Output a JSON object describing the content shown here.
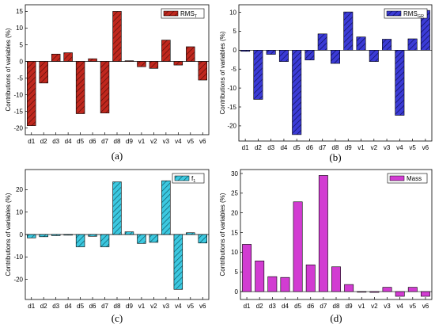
{
  "chart_data": [
    {
      "type": "bar",
      "panel_label": "(a)",
      "legend": "RMS",
      "legend_sub": "T",
      "ylabel": "Contributions of variables (%)",
      "categories": [
        "d1",
        "d2",
        "d3",
        "d4",
        "d5",
        "d6",
        "d7",
        "d8",
        "d9",
        "v1",
        "v2",
        "v3",
        "v4",
        "v5",
        "v6"
      ],
      "values": [
        -19.3,
        -6.5,
        2.2,
        2.6,
        -15.7,
        0.8,
        -15.5,
        15.0,
        0.2,
        -1.6,
        -2.1,
        6.4,
        -1.1,
        4.4,
        -5.6
      ],
      "ylim": [
        -22,
        17
      ],
      "yticks": [
        -20,
        -15,
        -10,
        -5,
        0,
        5,
        10,
        15
      ],
      "colors": {
        "fill": "#c0281e",
        "hatch": "#5a0c08"
      }
    },
    {
      "type": "bar",
      "panel_label": "(b)",
      "legend": "RMS",
      "legend_sub": "GR",
      "ylabel": "Contributions of variables (%)",
      "categories": [
        "d1",
        "d2",
        "d3",
        "d4",
        "d5",
        "d6",
        "d7",
        "d8",
        "d9",
        "v1",
        "v2",
        "v3",
        "v4",
        "v5",
        "v6"
      ],
      "values": [
        -0.3,
        -13.0,
        -1.1,
        -3.0,
        -22.3,
        -2.6,
        4.3,
        -3.5,
        10.1,
        3.5,
        -3.0,
        2.9,
        -17.2,
        3.0,
        10.5
      ],
      "ylim": [
        -24,
        12
      ],
      "yticks": [
        -20,
        -15,
        -10,
        -5,
        0,
        5,
        10
      ],
      "colors": {
        "fill": "#3b3bd6",
        "hatch": "#0c0c5a"
      }
    },
    {
      "type": "bar",
      "panel_label": "(c)",
      "legend": "f",
      "legend_sub": "1",
      "ylabel": "Contributions of variables (%)",
      "categories": [
        "d1",
        "d2",
        "d3",
        "d4",
        "d5",
        "d6",
        "d7",
        "d8",
        "d9",
        "v1",
        "v2",
        "v3",
        "v4",
        "v5",
        "v6"
      ],
      "values": [
        -1.5,
        -1.0,
        -0.5,
        -0.3,
        -5.5,
        -0.8,
        -5.5,
        23.5,
        1.2,
        -4.0,
        -3.5,
        24.0,
        -24.5,
        0.8,
        -3.8
      ],
      "ylim": [
        -29,
        29
      ],
      "yticks": [
        -20,
        -10,
        0,
        10,
        20
      ],
      "colors": {
        "fill": "#3cc8e0",
        "hatch": "#0c5a66"
      }
    },
    {
      "type": "bar",
      "panel_label": "(d)",
      "legend": "Mass",
      "legend_sub": "",
      "ylabel": "Contributions of variables (%)",
      "categories": [
        "d1",
        "d2",
        "d3",
        "d4",
        "d5",
        "d6",
        "d7",
        "d8",
        "d9",
        "v1",
        "v2",
        "v3",
        "v4",
        "v5",
        "v6"
      ],
      "values": [
        12.0,
        7.8,
        3.8,
        3.6,
        22.8,
        6.8,
        29.5,
        6.3,
        1.8,
        -0.1,
        -0.2,
        1.1,
        -1.2,
        1.1,
        -1.2
      ],
      "ylim": [
        -2,
        31
      ],
      "yticks": [
        0,
        5,
        10,
        15,
        20,
        25,
        30
      ],
      "colors": {
        "fill": "#d23cd2",
        "hatch": "#000000"
      }
    }
  ]
}
